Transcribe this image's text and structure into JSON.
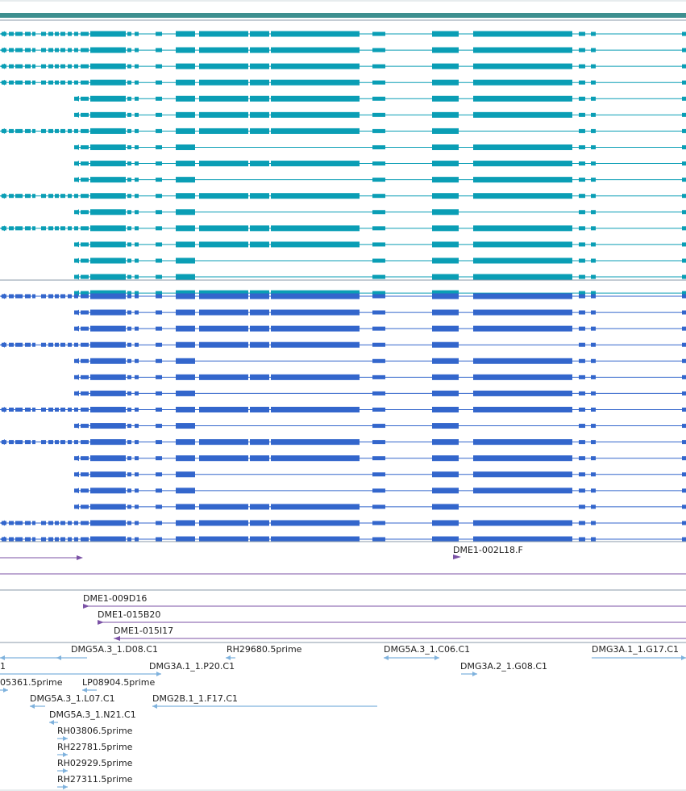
{
  "colors": {
    "top_bar": "#3e8f8f",
    "teal": "#0a9eb5",
    "blue": "#3366cc",
    "purple": "#7b52a6",
    "light_blue": "#7fb2dd",
    "separator": "#8899aa"
  },
  "tracks": {
    "teal_transcripts": {
      "count": 17
    },
    "blue_transcripts": {
      "count": 16
    },
    "bac_ends": {
      "items": [
        {
          "label": "DME1-002L18.F"
        },
        {
          "label": "DME1-009D16"
        },
        {
          "label": "DME1-015B20"
        },
        {
          "label": "DME1-015I17"
        }
      ]
    },
    "cdna": {
      "items": [
        {
          "label": "1"
        },
        {
          "label": "DMG5A.3_1.D08.C1"
        },
        {
          "label": "RH29680.5prime"
        },
        {
          "label": "DMG5A.3_1.C06.C1"
        },
        {
          "label": "DMG3A.1_1.G17.C1"
        },
        {
          "label": "DMG3A.1_1.P20.C1"
        },
        {
          "label": "DMG3A.2_1.G08.C1"
        },
        {
          "label": "05361.5prime"
        },
        {
          "label": "LP08904.5prime"
        },
        {
          "label": "DMG5A.3_1.L07.C1"
        },
        {
          "label": "DMG2B.1_1.F17.C1"
        },
        {
          "label": "DMG5A.3_1.N21.C1"
        },
        {
          "label": "RH03806.5prime"
        },
        {
          "label": "RH22781.5prime"
        },
        {
          "label": "RH02929.5prime"
        },
        {
          "label": "RH27311.5prime"
        }
      ]
    }
  }
}
